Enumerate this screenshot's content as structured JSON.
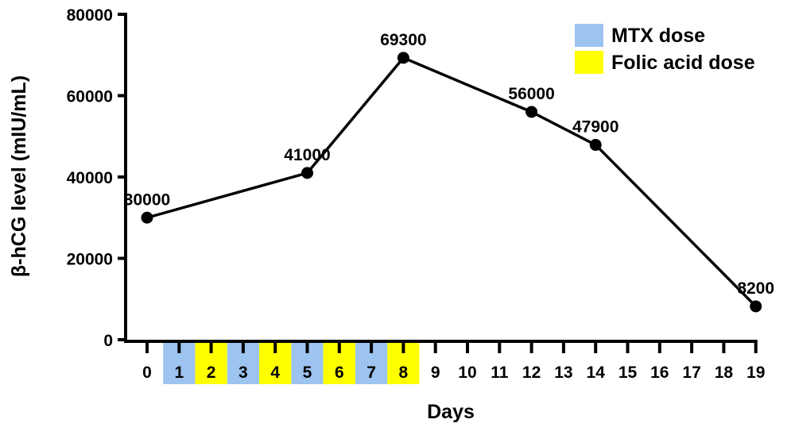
{
  "chart_data": {
    "type": "line",
    "title": "",
    "xlabel": "Days",
    "ylabel": "β-hCG level (mIU/mL)",
    "ylim": [
      0,
      80000
    ],
    "yticks": [
      0,
      20000,
      40000,
      60000,
      80000
    ],
    "xticks": [
      0,
      1,
      2,
      3,
      4,
      5,
      6,
      7,
      8,
      9,
      10,
      11,
      12,
      13,
      14,
      15,
      16,
      17,
      18,
      19
    ],
    "grid": false,
    "legend_position": "top-right",
    "series": [
      {
        "x": [
          0,
          5,
          8,
          12,
          14,
          19
        ],
        "values": [
          30000,
          41000,
          69300,
          56000,
          47900,
          8200
        ],
        "labels": [
          "30000",
          "41000",
          "69300",
          "56000",
          "47900",
          "8200"
        ],
        "color": "#000000"
      }
    ],
    "dose_schedule": [
      {
        "day": 1,
        "dose": "mtx"
      },
      {
        "day": 2,
        "dose": "folic"
      },
      {
        "day": 3,
        "dose": "mtx"
      },
      {
        "day": 4,
        "dose": "folic"
      },
      {
        "day": 5,
        "dose": "mtx"
      },
      {
        "day": 6,
        "dose": "folic"
      },
      {
        "day": 7,
        "dose": "mtx"
      },
      {
        "day": 8,
        "dose": "folic"
      }
    ],
    "legend": [
      {
        "key": "mtx",
        "label": "MTX dose",
        "color": "#9dc3f0"
      },
      {
        "key": "folic",
        "label": "Folic acid dose",
        "color": "#ffff00"
      }
    ]
  }
}
